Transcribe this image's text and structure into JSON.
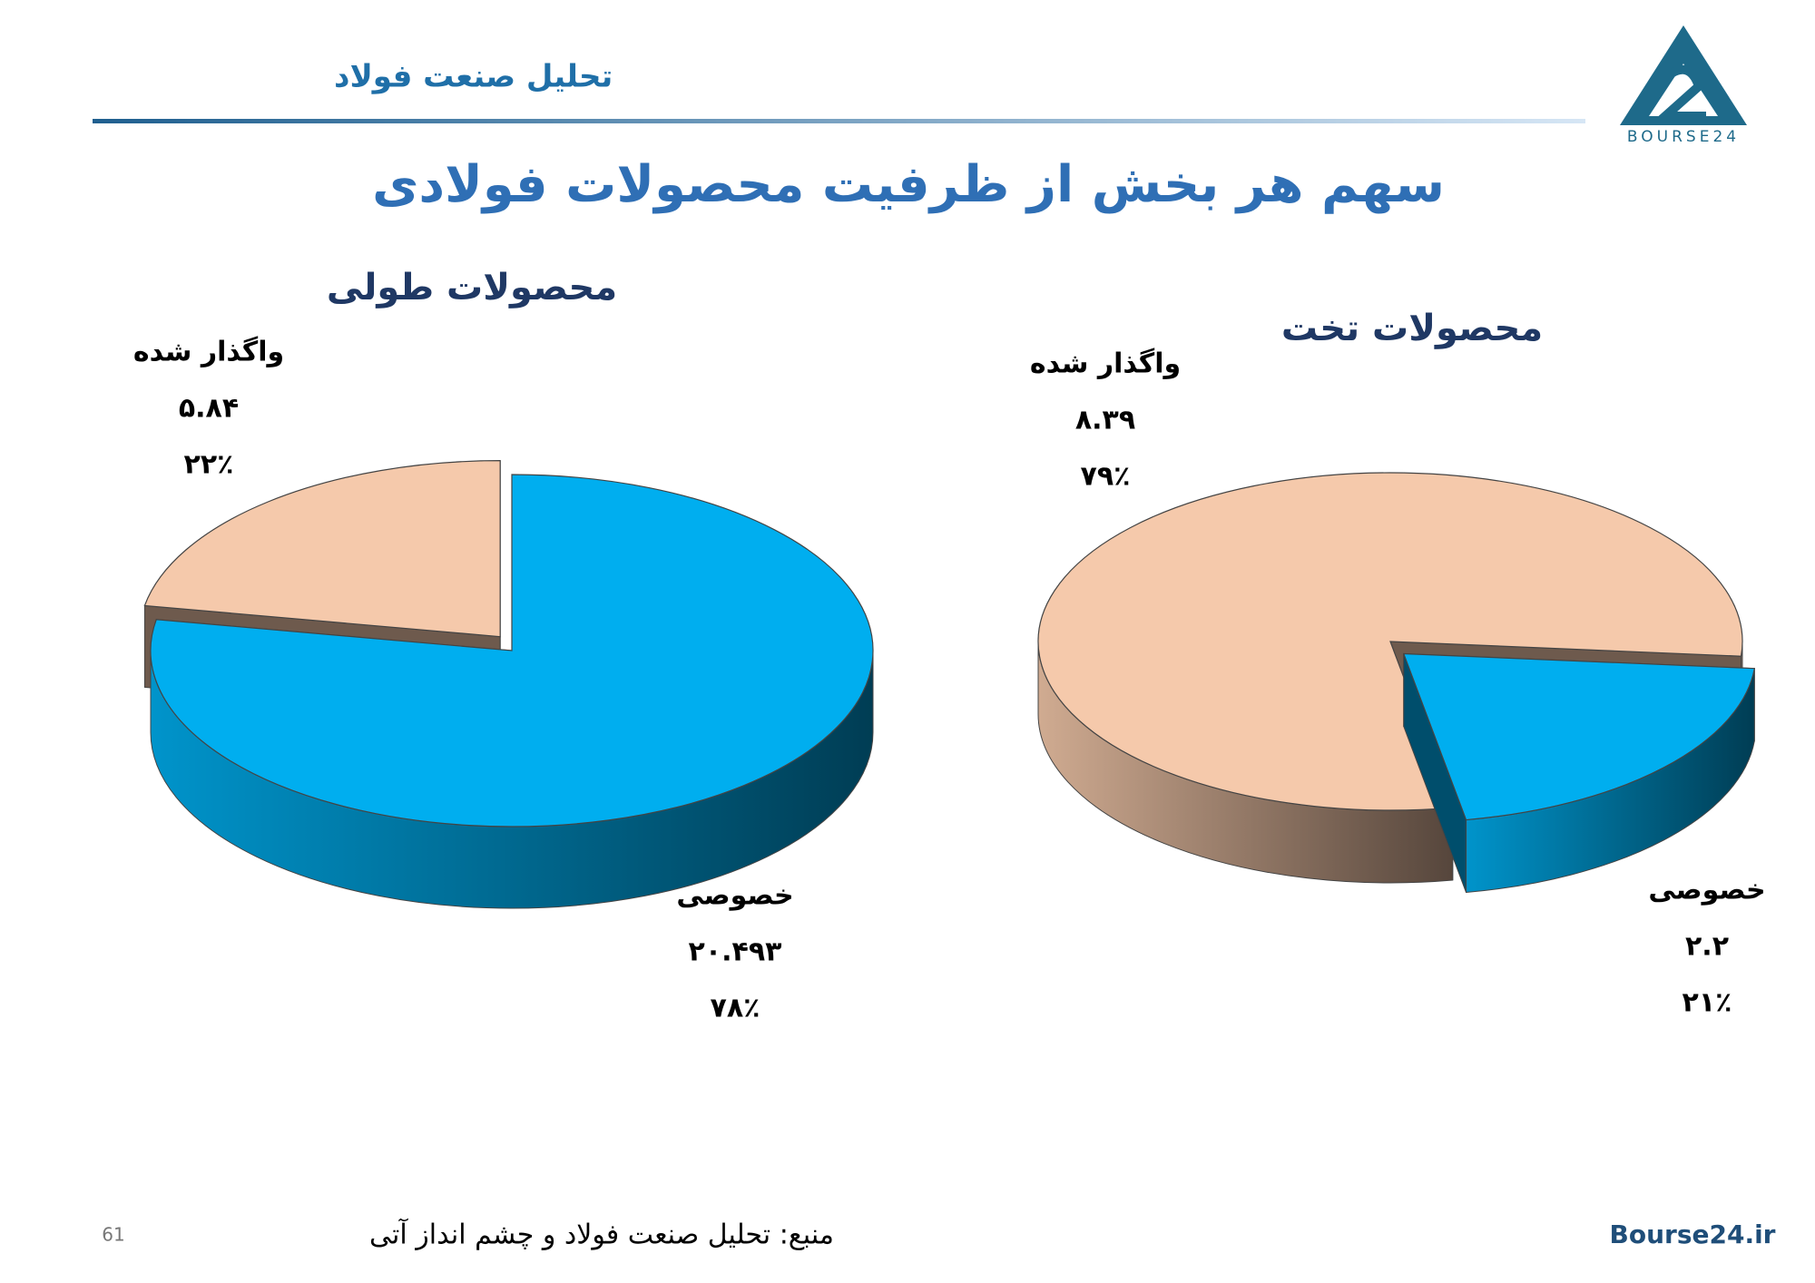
{
  "header": {
    "brand": "تحلیل صنعت فولاد",
    "logo": "BOURSE24"
  },
  "title": "سهم هر بخش از ظرفیت محصولات فولادی",
  "chart_data": [
    {
      "type": "pie",
      "title": "محصولات طولی",
      "categories": [
        "واگذار شده",
        "خصوصی"
      ],
      "values": [
        5.84,
        20.493
      ],
      "value_labels": [
        "۵.۸۴",
        "۲۰.۴۹۳"
      ],
      "percent_labels": [
        "۲۲٪",
        "۷۸٪"
      ],
      "colors": [
        "#f5c9ab",
        "#00aeef"
      ]
    },
    {
      "type": "pie",
      "title": "محصولات تخت",
      "categories": [
        "واگذار شده",
        "خصوصی"
      ],
      "values": [
        8.39,
        2.2
      ],
      "value_labels": [
        "۸.۳۹",
        "۲.۲"
      ],
      "percent_labels": [
        "۷۹٪",
        "۲۱٪"
      ],
      "colors": [
        "#f5c9ab",
        "#00aeef"
      ]
    }
  ],
  "footer": {
    "page": "61",
    "source": "منبع: تحلیل صنعت فولاد و چشم انداز آتی",
    "site": "Bourse24.ir"
  }
}
